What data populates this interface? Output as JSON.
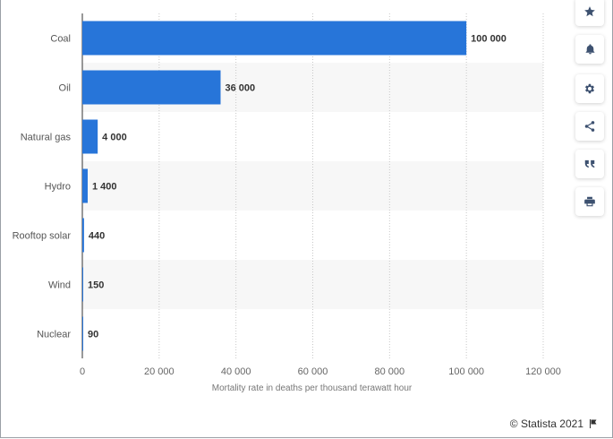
{
  "chart_data": {
    "type": "bar",
    "orientation": "horizontal",
    "categories": [
      "Coal",
      "Oil",
      "Natural gas",
      "Hydro",
      "Rooftop solar",
      "Wind",
      "Nuclear"
    ],
    "values": [
      100000,
      36000,
      4000,
      1400,
      440,
      150,
      90
    ],
    "value_labels": [
      "100 000",
      "36 000",
      "4 000",
      "1 400",
      "440",
      "150",
      "90"
    ],
    "xlabel": "Mortality rate in deaths per thousand terawatt hour",
    "xlim": [
      0,
      120000
    ],
    "ticks": [
      0,
      20000,
      40000,
      60000,
      80000,
      100000,
      120000
    ],
    "tick_labels": [
      "0",
      "20 000",
      "40 000",
      "60 000",
      "80 000",
      "100 000",
      "120 000"
    ],
    "bar_color": "#2775d9",
    "grid": "vertical dotted",
    "legend": "none"
  },
  "toolbar": {
    "buttons": [
      {
        "icon": "star-icon"
      },
      {
        "icon": "bell-icon"
      },
      {
        "icon": "gear-icon"
      },
      {
        "icon": "share-icon"
      },
      {
        "icon": "quote-icon"
      },
      {
        "icon": "print-icon"
      }
    ]
  },
  "credit": {
    "text": "© Statista 2021",
    "icon": "flag-icon"
  }
}
